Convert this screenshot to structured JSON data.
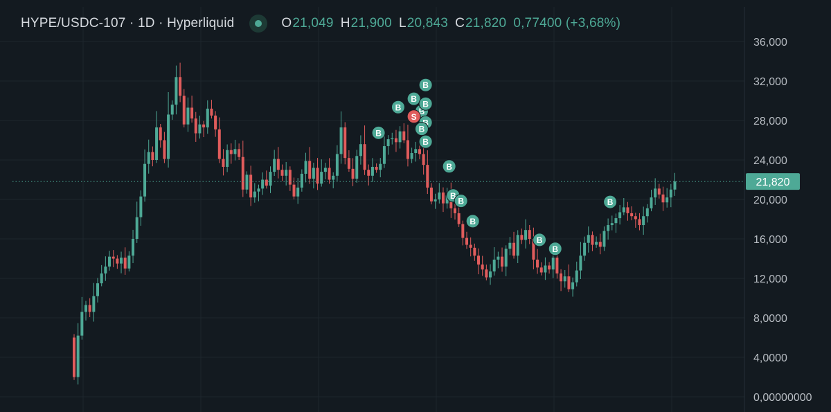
{
  "header": {
    "title": "HYPE/USDC-107 · 1D · Hyperliquid",
    "open_label": "O",
    "open_value": "21,049",
    "high_label": "H",
    "high_value": "21,900",
    "low_label": "L",
    "low_value": "20,843",
    "close_label": "C",
    "close_value": "21,820",
    "change_text": "0,77400 (+3,68%)"
  },
  "colors": {
    "background": "#131a20",
    "up": "#4ea996",
    "down": "#e05c5c",
    "grid": "#1e262d",
    "axis_text": "#b8bdc3",
    "price_line": "#4ea996"
  },
  "chart_data": {
    "type": "candlestick",
    "timeframe": "1D",
    "y_ticks": [
      "36,000",
      "32,000",
      "28,000",
      "24,000",
      "20,000",
      "16,000",
      "12,000",
      "8,0000",
      "4,0000",
      "0,00000000"
    ],
    "y_tick_values": [
      36,
      32,
      28,
      24,
      20,
      16,
      12,
      8,
      4,
      0
    ],
    "ylim": [
      0,
      38
    ],
    "grid": true,
    "last_price_label": "21,820",
    "last_price": 21.82,
    "closes": [
      2.0,
      6.2,
      8.6,
      9.3,
      8.6,
      10.2,
      11.5,
      12.5,
      13.2,
      14.2,
      14.0,
      13.5,
      14.1,
      13.0,
      14.3,
      16.0,
      18.2,
      20.3,
      23.6,
      24.8,
      24.0,
      27.3,
      26.0,
      24.1,
      28.6,
      29.6,
      32.4,
      30.5,
      27.6,
      29.3,
      28.2,
      26.7,
      27.6,
      27.3,
      29.2,
      28.5,
      27.1,
      24.1,
      23.3,
      25.0,
      24.6,
      25.1,
      24.3,
      21.0,
      22.5,
      20.2,
      20.8,
      21.1,
      22.0,
      21.4,
      22.8,
      24.1,
      23.0,
      22.4,
      23.0,
      21.5,
      20.3,
      21.2,
      22.6,
      23.9,
      22.1,
      23.2,
      21.6,
      22.8,
      23.2,
      22.0,
      22.4,
      24.6,
      27.3,
      24.2,
      23.1,
      22.1,
      24.4,
      25.6,
      23.0,
      22.4,
      23.3,
      23.0,
      23.6,
      25.4,
      26.1,
      26.2,
      25.8,
      26.9,
      26.0,
      24.1,
      24.7,
      25.1,
      24.6,
      23.5,
      21.2,
      19.8,
      20.0,
      20.7,
      19.6,
      20.4,
      19.1,
      18.6,
      17.5,
      16.1,
      15.4,
      15.1,
      14.3,
      13.4,
      12.9,
      12.1,
      12.7,
      13.9,
      14.2,
      13.2,
      15.0,
      15.6,
      14.3,
      16.4,
      15.9,
      16.9,
      16.0,
      13.9,
      13.1,
      12.6,
      13.3,
      12.9,
      14.1,
      12.5,
      11.7,
      12.2,
      10.9,
      11.6,
      12.8,
      14.3,
      15.6,
      16.4,
      15.4,
      15.7,
      15.2,
      16.8,
      17.4,
      17.6,
      18.1,
      18.7,
      19.2,
      18.6,
      18.3,
      18.0,
      17.4,
      18.3,
      19.1,
      20.2,
      21.1,
      20.5,
      19.7,
      20.2,
      21.0,
      21.82
    ],
    "markers": [
      {
        "label": "B",
        "price": 26.75,
        "index": 77
      },
      {
        "label": "B",
        "price": 29.35,
        "index": 82
      },
      {
        "label": "B",
        "price": 30.2,
        "index": 86
      },
      {
        "label": "B",
        "price": 31.6,
        "index": 89
      },
      {
        "label": "B",
        "price": 28.95,
        "index": 88
      },
      {
        "label": "B",
        "price": 29.7,
        "index": 89
      },
      {
        "label": "S",
        "price": 28.4,
        "index": 86
      },
      {
        "label": "B",
        "price": 27.8,
        "index": 89
      },
      {
        "label": "B",
        "price": 27.15,
        "index": 88
      },
      {
        "label": "B",
        "price": 25.85,
        "index": 89
      },
      {
        "label": "B",
        "price": 23.35,
        "index": 95
      },
      {
        "label": "B",
        "price": 20.4,
        "index": 96
      },
      {
        "label": "B",
        "price": 19.85,
        "index": 98
      },
      {
        "label": "B",
        "price": 17.8,
        "index": 101
      },
      {
        "label": "B",
        "price": 15.9,
        "index": 118
      },
      {
        "label": "B",
        "price": 15.0,
        "index": 122
      },
      {
        "label": "B",
        "price": 19.75,
        "index": 136
      }
    ]
  }
}
